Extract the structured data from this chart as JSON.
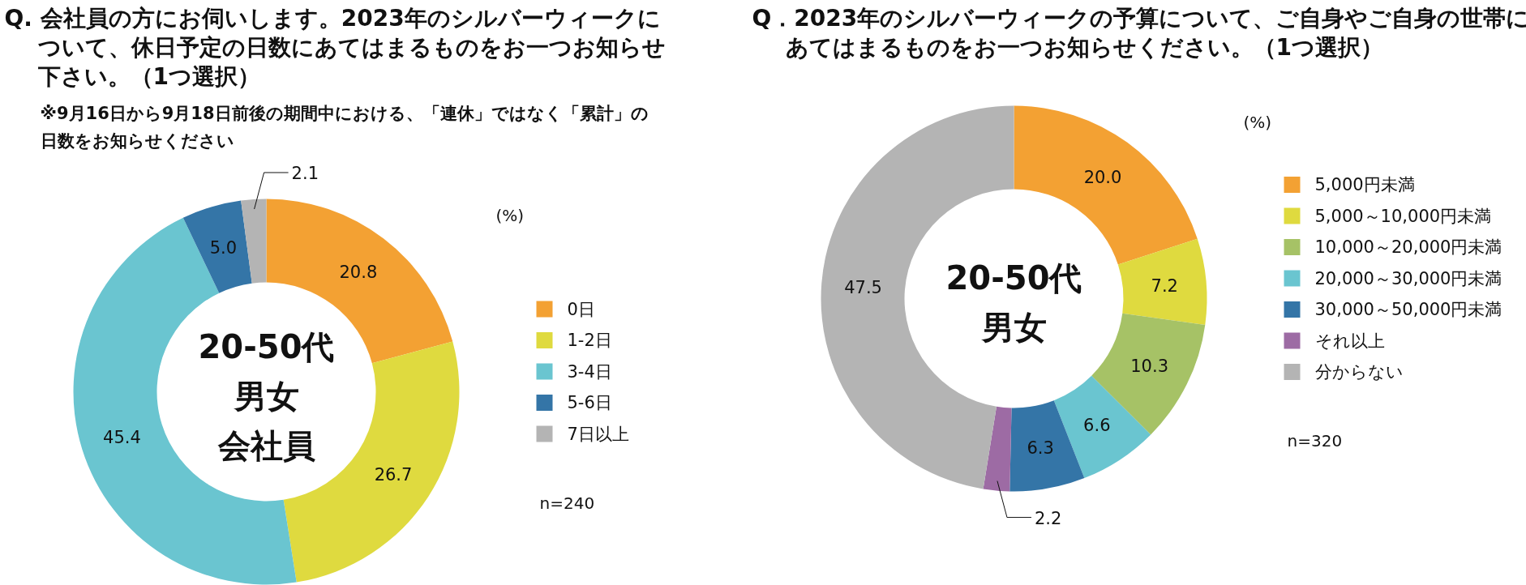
{
  "chart_data": [
    {
      "type": "donut",
      "title": "Q. 会社員の方にお伺いします。2023年のシルバーウィークについて、休日予定の日数にあてはまるものをお一つお知らせ下さい。（1つ選択）",
      "subtitle": "※9月16日から9月18日前後の期間中における、「連休」ではなく「累計」の日数をお知らせください",
      "categories": [
        "0日",
        "1-2日",
        "3-4日",
        "5-6日",
        "7日以上"
      ],
      "values": [
        20.8,
        26.7,
        45.4,
        5.0,
        2.1
      ],
      "value_labels": [
        "20.8",
        "26.7",
        "45.4",
        "5.0",
        "2.1"
      ],
      "colors": [
        "#f3a133",
        "#dfda3f",
        "#6ac5d0",
        "#3475a7",
        "#b4b4b4"
      ],
      "legend": "right",
      "annotations": [
        "(%)",
        "n=240",
        "20-50代",
        "男女",
        "会社員"
      ]
    },
    {
      "type": "donut",
      "title": "Q．2023年のシルバーウィークの予算について、ご自身やご自身の世帯にあてはまるものをお一つお知らせください。（1つ選択）",
      "categories": [
        "5,000円未満",
        "5,000～10,000円未満",
        "10,000～20,000円未満",
        "20,000～30,000円未満",
        "30,000～50,000円未満",
        "それ以上",
        "分からない"
      ],
      "values": [
        20.0,
        7.2,
        10.3,
        6.6,
        6.3,
        2.2,
        47.5
      ],
      "value_labels": [
        "20.0",
        "7.2",
        "10.3",
        "6.6",
        "6.3",
        "2.2",
        "47.5"
      ],
      "colors": [
        "#f3a133",
        "#dfda3f",
        "#a6c266",
        "#6ac5d0",
        "#3475a7",
        "#9d6ba4",
        "#b4b4b4"
      ],
      "legend": "right",
      "annotations": [
        "(%)",
        "n=320",
        "20-50代",
        "男女"
      ]
    }
  ]
}
